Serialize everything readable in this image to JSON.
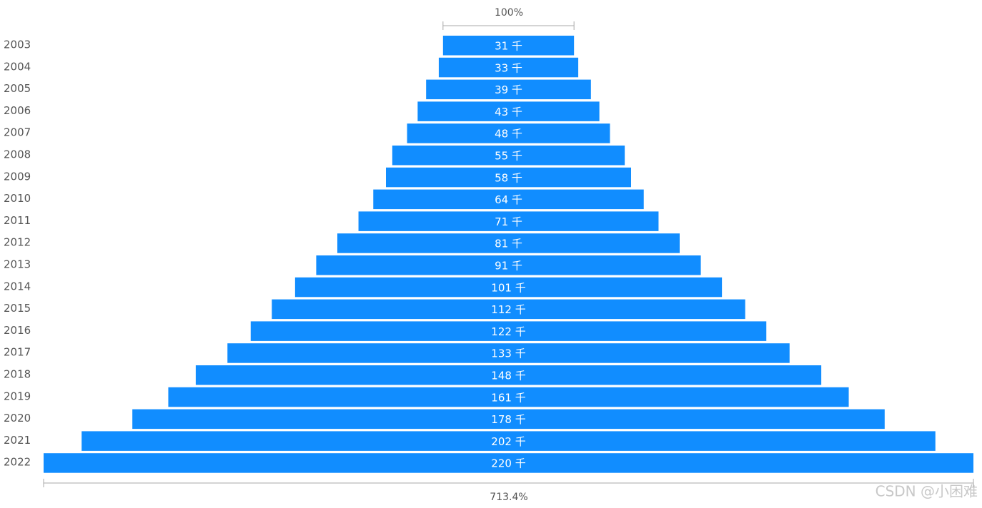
{
  "chart_data": {
    "type": "funnel",
    "categories": [
      "2003",
      "2004",
      "2005",
      "2006",
      "2007",
      "2008",
      "2009",
      "2010",
      "2011",
      "2012",
      "2013",
      "2014",
      "2015",
      "2016",
      "2017",
      "2018",
      "2019",
      "2020",
      "2021",
      "2022"
    ],
    "values": [
      31,
      33,
      39,
      43,
      48,
      55,
      58,
      64,
      71,
      81,
      91,
      101,
      112,
      122,
      133,
      148,
      161,
      178,
      202,
      220
    ],
    "value_labels": [
      "31 千",
      "33 千",
      "39 千",
      "43 千",
      "48 千",
      "55 千",
      "58 千",
      "64 千",
      "71 千",
      "81 千",
      "91 千",
      "101 千",
      "112 千",
      "122 千",
      "133 千",
      "148 千",
      "161 千",
      "178 千",
      "202 千",
      "220 千"
    ],
    "color": "#118dff",
    "top_annotation": "100%",
    "bottom_annotation": "713.4%",
    "watermark": "CSDN @小困难"
  }
}
